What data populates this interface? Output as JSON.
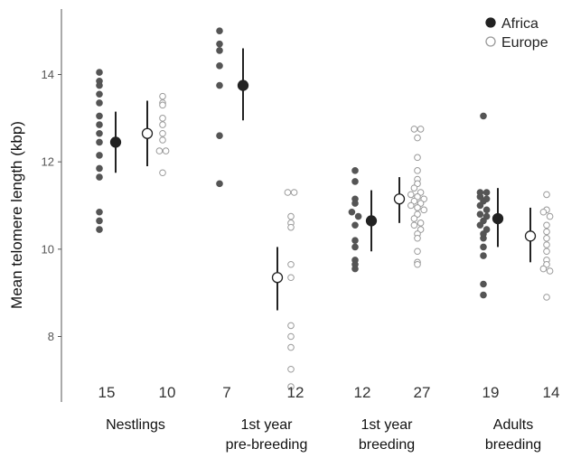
{
  "chart_data": {
    "type": "scatter",
    "ylabel": "Mean telomere length (kbp)",
    "ylim": [
      6.5,
      15.5
    ],
    "yticks": [
      8,
      10,
      12,
      14
    ],
    "grid": false,
    "legend_position": "top-right",
    "colors": {
      "africa_fill": "#555555",
      "africa_mean": "#222222",
      "europe_stroke": "#999999",
      "line": "#222222"
    },
    "series": [
      {
        "name": "Africa"
      },
      {
        "name": "Europe"
      }
    ],
    "categories": [
      {
        "lines": [
          "Nestlings"
        ],
        "groups": [
          {
            "series": "Africa",
            "n": "15",
            "mean": 12.45,
            "ci": [
              11.75,
              13.15
            ],
            "points": [
              14.05,
              13.85,
              13.75,
              13.55,
              13.35,
              13.05,
              12.85,
              12.65,
              12.45,
              12.15,
              11.85,
              11.65,
              10.85,
              10.65,
              10.45
            ]
          },
          {
            "series": "Europe",
            "n": "10",
            "mean": 12.65,
            "ci": [
              11.9,
              13.4
            ],
            "points": [
              13.5,
              13.35,
              13.3,
              13.0,
              12.85,
              12.65,
              12.5,
              12.25,
              12.25,
              11.75
            ]
          }
        ]
      },
      {
        "lines": [
          "1st year",
          "pre-breeding"
        ],
        "groups": [
          {
            "series": "Africa",
            "n": "7",
            "mean": 13.75,
            "ci": [
              12.95,
              14.6
            ],
            "points": [
              15.0,
              14.7,
              14.55,
              14.2,
              13.75,
              12.6,
              11.5
            ]
          },
          {
            "series": "Europe",
            "n": "12",
            "mean": 9.35,
            "ci": [
              8.6,
              10.05
            ],
            "points": [
              11.3,
              11.3,
              10.75,
              10.6,
              10.5,
              9.65,
              9.35,
              8.25,
              8.0,
              7.75,
              7.25,
              6.85
            ]
          }
        ]
      },
      {
        "lines": [
          "1st year",
          "breeding"
        ],
        "groups": [
          {
            "series": "Africa",
            "n": "12",
            "mean": 10.65,
            "ci": [
              9.95,
              11.35
            ],
            "points": [
              11.8,
              11.55,
              11.15,
              11.05,
              10.85,
              10.75,
              10.55,
              10.2,
              10.05,
              9.75,
              9.65,
              9.55
            ]
          },
          {
            "series": "Europe",
            "n": "27",
            "mean": 11.15,
            "ci": [
              10.6,
              11.65
            ],
            "points": [
              12.75,
              12.75,
              12.55,
              12.1,
              11.8,
              11.6,
              11.5,
              11.4,
              11.3,
              11.25,
              11.2,
              11.15,
              11.1,
              11.05,
              11.0,
              10.95,
              10.9,
              10.8,
              10.7,
              10.6,
              10.55,
              10.45,
              10.35,
              10.25,
              9.95,
              9.7,
              9.65
            ]
          }
        ]
      },
      {
        "lines": [
          "Adults",
          "breeding"
        ],
        "groups": [
          {
            "series": "Africa",
            "n": "19",
            "mean": 10.7,
            "ci": [
              10.05,
              11.4
            ],
            "points": [
              13.05,
              11.3,
              11.3,
              11.2,
              11.15,
              11.1,
              11.0,
              10.9,
              10.8,
              10.75,
              10.65,
              10.55,
              10.45,
              10.35,
              10.25,
              10.05,
              9.85,
              9.2,
              8.95
            ]
          },
          {
            "series": "Europe",
            "n": "14",
            "mean": 10.3,
            "ci": [
              9.7,
              10.95
            ],
            "points": [
              11.25,
              10.9,
              10.85,
              10.75,
              10.55,
              10.4,
              10.25,
              10.1,
              9.95,
              9.75,
              9.65,
              9.55,
              9.5,
              8.9
            ]
          }
        ]
      }
    ]
  }
}
